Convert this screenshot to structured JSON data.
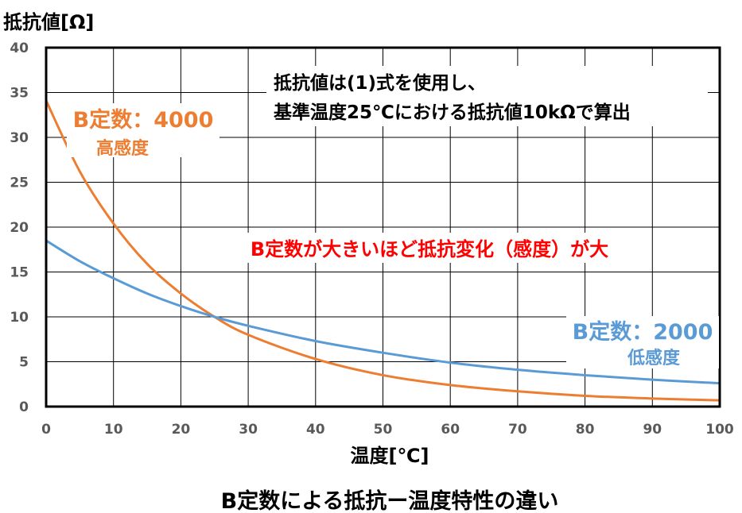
{
  "chart_data": {
    "type": "line",
    "title": "B定数による抵抗ー温度特性の違い",
    "xlabel": "温度[℃]",
    "ylabel": "抵抗値[Ω]",
    "xlim": [
      0,
      100
    ],
    "ylim": [
      0,
      40
    ],
    "x_ticks": [
      "0",
      "10",
      "20",
      "30",
      "40",
      "50",
      "60",
      "70",
      "80",
      "90",
      "100"
    ],
    "y_ticks": [
      "0",
      "5",
      "10",
      "15",
      "20",
      "25",
      "30",
      "35",
      "40"
    ],
    "grid": true,
    "x": [
      0,
      5,
      10,
      15,
      20,
      25,
      30,
      40,
      50,
      60,
      70,
      80,
      90,
      100
    ],
    "series": [
      {
        "label": "B定数：4000",
        "sublabel": "高感度",
        "color": "#ED7D31",
        "values": [
          34.1,
          26.2,
          20.4,
          15.9,
          12.6,
          10.0,
          8.0,
          5.3,
          3.5,
          2.4,
          1.7,
          1.2,
          0.9,
          0.7
        ]
      },
      {
        "label": "B定数：2000",
        "sublabel": "低感度",
        "color": "#5B9BD5",
        "values": [
          18.5,
          16.2,
          14.3,
          12.6,
          11.2,
          10.0,
          9.0,
          7.3,
          6.0,
          4.9,
          4.1,
          3.5,
          3.0,
          2.6
        ]
      }
    ],
    "annotations": {
      "note_line1": "抵抗値は(1)式を使用し、",
      "note_line2": "基準温度25℃における抵抗値10kΩで算出",
      "highlight": "B定数が大きいほど抵抗変化（感度）が大",
      "highlight_color": "#FF0000"
    }
  }
}
